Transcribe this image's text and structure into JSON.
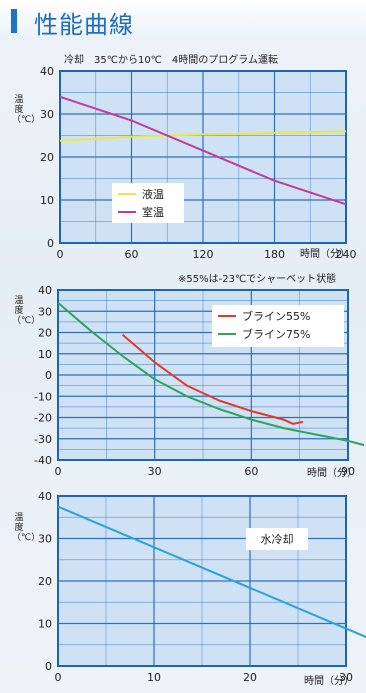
{
  "header": {
    "title": "性能曲線"
  },
  "colors": {
    "accent": "#1b74c7",
    "grid_bg": "#cfe2f5",
    "grid_line": "#1f63b5"
  },
  "chart_data": [
    {
      "type": "line",
      "title": "冷却　35℃から10℃　4時間のプログラム運転",
      "xlabel": "時間（分）",
      "ylabel": "温度（℃）",
      "xlim": [
        0,
        240
      ],
      "ylim": [
        0,
        40
      ],
      "x_ticks": [
        "0",
        "60",
        "120",
        "180",
        "240"
      ],
      "y_ticks": [
        "0",
        "10",
        "20",
        "30",
        "40"
      ],
      "legend": "bottom-left",
      "series": [
        {
          "name": "液温",
          "color": "#e8e84a",
          "x": [
            0,
            30,
            60,
            90,
            120,
            150,
            180,
            210,
            240
          ],
          "y": [
            23.8,
            24.2,
            24.7,
            25.0,
            25.3,
            25.4,
            25.6,
            25.8,
            26.0
          ]
        },
        {
          "name": "室温",
          "color": "#c23b9a",
          "x": [
            0,
            60,
            120,
            180,
            240
          ],
          "y": [
            34,
            28.5,
            21.5,
            14.5,
            9
          ]
        }
      ]
    },
    {
      "type": "line",
      "title": "※55%は-23℃でシャーベット状態",
      "xlabel": "時間（分）",
      "ylabel": "温度（℃）",
      "xlim": [
        0,
        90
      ],
      "ylim": [
        -40,
        40
      ],
      "x_ticks": [
        "0",
        "30",
        "60",
        "90"
      ],
      "y_ticks": [
        "40",
        "30",
        "20",
        "10",
        "0",
        "-10",
        "-20",
        "-30",
        "-40"
      ],
      "legend": "top-right",
      "series": [
        {
          "name": "ブライン55%",
          "color": "#e23a2a",
          "x": [
            20,
            30,
            40,
            50,
            60,
            70,
            73,
            76
          ],
          "y": [
            19,
            6,
            -5,
            -12,
            -17,
            -21,
            -23,
            -22
          ]
        },
        {
          "name": "ブライン75%",
          "color": "#2fa35a",
          "x": [
            0,
            10,
            20,
            30,
            40,
            50,
            60,
            70,
            80,
            90,
            95
          ],
          "y": [
            34,
            21,
            9,
            -2,
            -10,
            -16,
            -21,
            -25,
            -28,
            -31,
            -33
          ]
        }
      ]
    },
    {
      "type": "line",
      "title": "",
      "xlabel": "時間（分）",
      "ylabel": "温度（℃）",
      "xlim": [
        0,
        30
      ],
      "ylim": [
        0,
        40
      ],
      "x_ticks": [
        "0",
        "10",
        "20",
        "30"
      ],
      "y_ticks": [
        "0",
        "10",
        "20",
        "30",
        "40"
      ],
      "legend": "top-right",
      "series": [
        {
          "name": "水冷却",
          "color": "#2aa2dc",
          "x": [
            0,
            34
          ],
          "y": [
            37.5,
            5
          ]
        }
      ]
    }
  ]
}
